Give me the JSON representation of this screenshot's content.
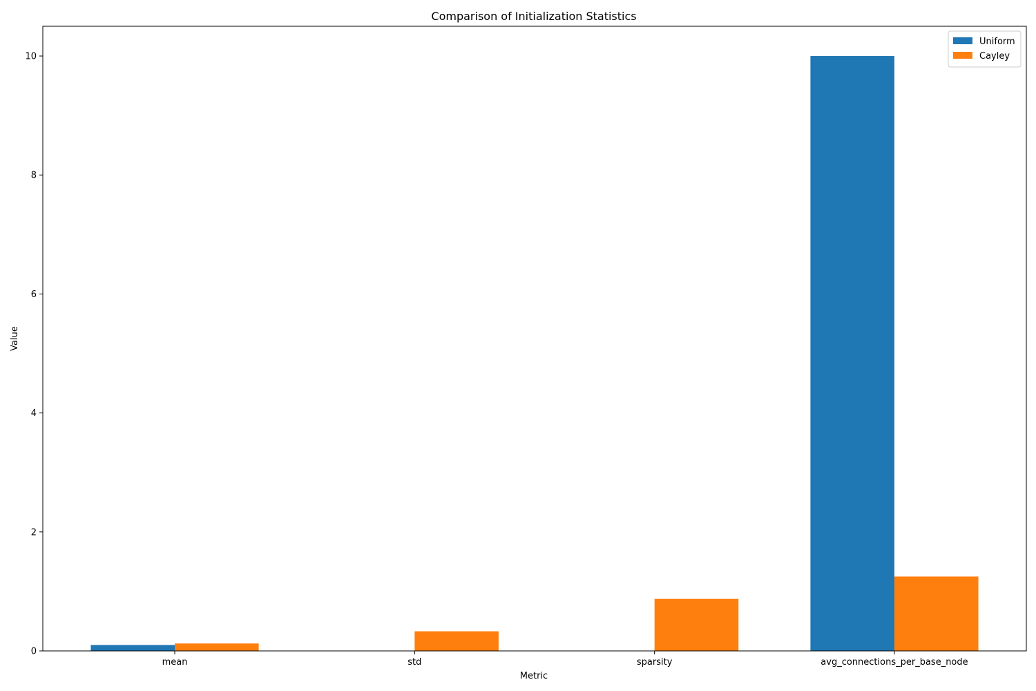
{
  "chart_data": {
    "type": "bar",
    "title": "Comparison of Initialization Statistics",
    "xlabel": "Metric",
    "ylabel": "Value",
    "categories": [
      "mean",
      "std",
      "sparsity",
      "avg_connections_per_base_node"
    ],
    "series": [
      {
        "name": "Uniform",
        "color": "#1f77b4",
        "values": [
          0.1,
          0.0,
          0.0,
          10.0
        ]
      },
      {
        "name": "Cayley",
        "color": "#ff7f0e",
        "values": [
          0.125,
          0.33,
          0.875,
          1.25
        ]
      }
    ],
    "ylim": [
      0,
      10.5
    ],
    "yticks": [
      0,
      2,
      4,
      6,
      8,
      10
    ],
    "grid": false,
    "legend": "top-right"
  }
}
